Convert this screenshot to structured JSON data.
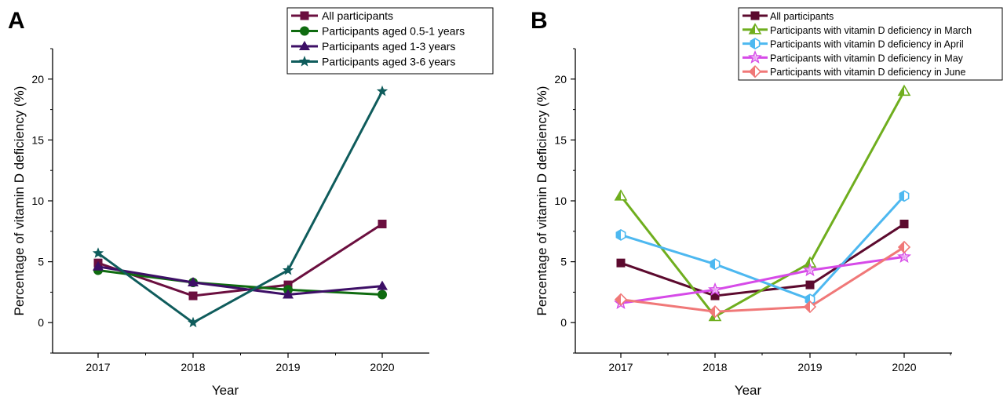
{
  "chart_data": [
    {
      "type": "line",
      "panel_label": "A",
      "xlabel": "Year",
      "ylabel": "Percentage of vitamin D deficiency (%)",
      "categories": [
        "2017",
        "2018",
        "2019",
        "2020"
      ],
      "yticks": [
        "0",
        "5",
        "10",
        "15",
        "20"
      ],
      "ylim": [
        -2.5,
        22.5
      ],
      "legend_position": "top-right",
      "series": [
        {
          "name": "All participants",
          "color": "#6b0f3f",
          "marker": "square",
          "values": [
            4.9,
            2.2,
            3.1,
            8.1
          ]
        },
        {
          "name": "Participants aged 0.5-1 years",
          "color": "#0f6b10",
          "marker": "circle",
          "values": [
            4.3,
            3.3,
            2.7,
            2.3
          ]
        },
        {
          "name": "Participants aged 1-3 years",
          "color": "#3d0f66",
          "marker": "triangle",
          "values": [
            4.6,
            3.3,
            2.3,
            3.0
          ]
        },
        {
          "name": "Participants aged 3-6 years",
          "color": "#0f5c5c",
          "marker": "star",
          "values": [
            5.7,
            0.0,
            4.3,
            19.0
          ]
        }
      ]
    },
    {
      "type": "line",
      "panel_label": "B",
      "xlabel": "Year",
      "ylabel": "Percentage of vitamin D deficiency (%)",
      "categories": [
        "2017",
        "2018",
        "2019",
        "2020"
      ],
      "yticks": [
        "0",
        "5",
        "10",
        "15",
        "20"
      ],
      "ylim": [
        -2.5,
        22.5
      ],
      "legend_position": "top-right",
      "series": [
        {
          "name": "All participants",
          "color": "#5c0a2e",
          "marker": "square",
          "values": [
            4.9,
            2.2,
            3.1,
            8.1
          ]
        },
        {
          "name": "Participants with vitamin D deficiency in March",
          "color": "#6fae1e",
          "marker": "triangle-open",
          "values": [
            10.4,
            0.5,
            4.9,
            19.0
          ]
        },
        {
          "name": "Participants with vitamin D deficiency in April",
          "color": "#4db8f0",
          "marker": "hexagon-open",
          "values": [
            7.2,
            4.8,
            1.9,
            10.4
          ]
        },
        {
          "name": "Participants with vitamin D deficiency in May",
          "color": "#d64ae8",
          "marker": "star-open",
          "values": [
            1.6,
            2.7,
            4.3,
            5.4
          ]
        },
        {
          "name": "Participants with vitamin D deficiency in June",
          "color": "#f07878",
          "marker": "diamond-open",
          "values": [
            1.9,
            0.9,
            1.3,
            6.2
          ]
        }
      ]
    }
  ]
}
